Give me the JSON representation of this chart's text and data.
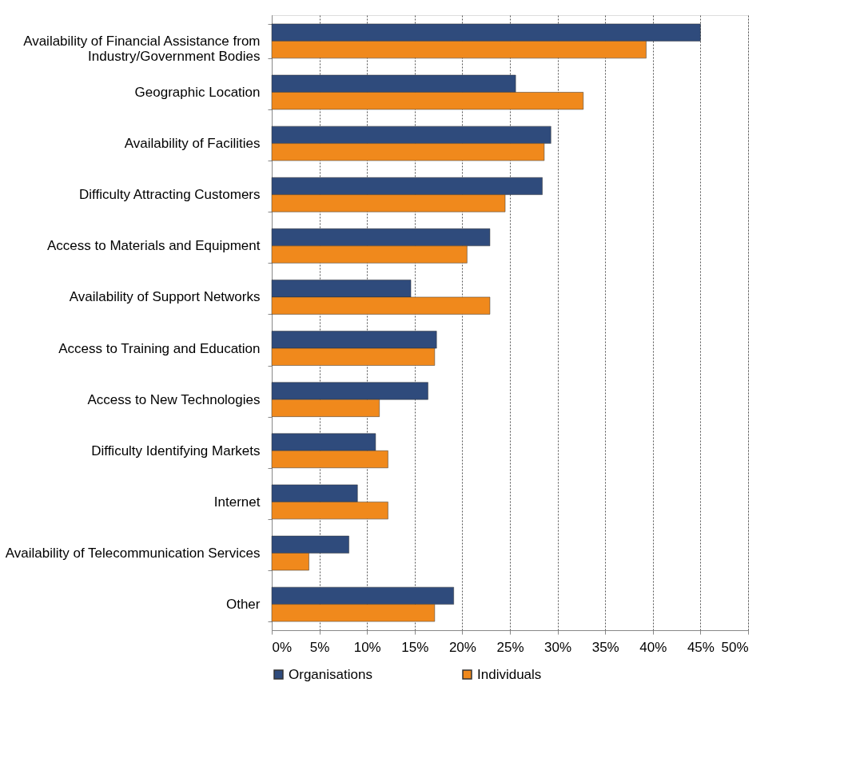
{
  "chart_data": {
    "type": "bar",
    "orientation": "horizontal",
    "categories": [
      "Availability of Financial Assistance from Industry/Government Bodies",
      "Geographic Location",
      "Availability of Facilities",
      "Difficulty Attracting Customers",
      "Access to Materials and Equipment",
      "Availability of Support Networks",
      "Access to Training and Education",
      "Access to New Technologies",
      "Difficulty Identifying Markets",
      "Internet",
      "Availability of Telecommunication Services",
      "Other"
    ],
    "series": [
      {
        "name": "Organisations",
        "color": "#2f4b7c",
        "values": [
          45.0,
          25.6,
          29.3,
          28.4,
          22.9,
          14.6,
          17.3,
          16.4,
          10.9,
          9.0,
          8.1,
          19.1
        ]
      },
      {
        "name": "Individuals",
        "color": "#f0891c",
        "values": [
          39.3,
          32.7,
          28.6,
          24.5,
          20.5,
          22.9,
          17.1,
          11.3,
          12.2,
          12.2,
          3.9,
          17.1
        ]
      }
    ],
    "xlim": [
      0,
      50
    ],
    "xticks": [
      {
        "value": 0,
        "label": "0%"
      },
      {
        "value": 5,
        "label": "5%"
      },
      {
        "value": 10,
        "label": "10%"
      },
      {
        "value": 15,
        "label": "15%"
      },
      {
        "value": 20,
        "label": "20%"
      },
      {
        "value": 25,
        "label": "25%"
      },
      {
        "value": 30,
        "label": "30%"
      },
      {
        "value": 35,
        "label": "35%"
      },
      {
        "value": 40,
        "label": "40%"
      },
      {
        "value": 45,
        "label": "45%"
      },
      {
        "value": 50,
        "label": "50%"
      }
    ],
    "grid": "x",
    "legend": "bottom"
  }
}
